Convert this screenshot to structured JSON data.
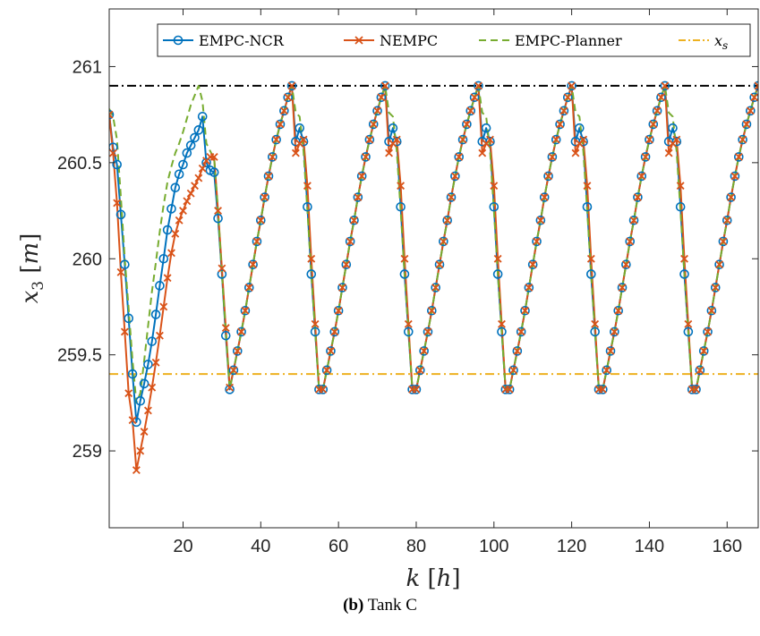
{
  "caption": {
    "tag": "(b)",
    "text": "Tank C"
  },
  "chart_data": {
    "type": "line",
    "title": "",
    "xlabel": "k [h]",
    "ylabel": "x3 [m]",
    "xlim": [
      1,
      168
    ],
    "ylim": [
      258.6,
      261.3
    ],
    "xticks": [
      20,
      40,
      60,
      80,
      100,
      120,
      140,
      160
    ],
    "yticks": [
      259,
      259.5,
      260,
      260.5,
      261
    ],
    "ytick_labels": [
      "259",
      "259.5",
      "260",
      "260.5",
      "261"
    ],
    "legend": {
      "position": "top-right",
      "orientation": "horizontal"
    },
    "reference_lines": [
      {
        "name": "upper bound",
        "y": 260.9,
        "color": "#000000",
        "style": "dash-dot"
      },
      {
        "name": "x_s",
        "y": 259.4,
        "color": "#EDB120",
        "style": "dash-dot"
      }
    ],
    "series": [
      {
        "name": "EMPC-NCR",
        "color": "#0072BD",
        "marker": "circle",
        "x": [
          1,
          2,
          3,
          4,
          5,
          6,
          7,
          8,
          9,
          10,
          11,
          12,
          13,
          14,
          15,
          16,
          17,
          18,
          19,
          20,
          21,
          22,
          23,
          24,
          25,
          26,
          27,
          28,
          29,
          30,
          31,
          32
        ],
        "y": [
          260.75,
          260.58,
          260.49,
          260.23,
          259.97,
          259.69,
          259.4,
          259.15,
          259.26,
          259.35,
          259.45,
          259.57,
          259.71,
          259.86,
          260.0,
          260.15,
          260.26,
          260.37,
          260.44,
          260.49,
          260.55,
          260.59,
          260.63,
          260.67,
          260.74,
          260.5,
          260.46,
          260.45,
          260.21,
          259.92,
          259.6,
          259.32
        ]
      },
      {
        "name": "NEMPC",
        "color": "#D95319",
        "marker": "x",
        "x": [
          1,
          2,
          3,
          4,
          5,
          6,
          7,
          8,
          9,
          10,
          11,
          12,
          13,
          14,
          15,
          16,
          17,
          18,
          19,
          20,
          21,
          22,
          23,
          24,
          25,
          26,
          27,
          28,
          29,
          30,
          31,
          32
        ],
        "y": [
          260.75,
          260.55,
          260.29,
          259.93,
          259.62,
          259.3,
          259.16,
          258.9,
          259.0,
          259.1,
          259.21,
          259.33,
          259.46,
          259.6,
          259.75,
          259.9,
          260.03,
          260.13,
          260.2,
          260.25,
          260.3,
          260.34,
          260.38,
          260.42,
          260.47,
          260.51,
          260.53,
          260.53,
          260.25,
          259.95,
          259.64,
          259.33
        ]
      },
      {
        "name": "EMPC-Planner",
        "color": "#77AC30",
        "marker": "none",
        "x": [
          1,
          2,
          3,
          4,
          5,
          6,
          7,
          8,
          9,
          10,
          11,
          12,
          13,
          14,
          15,
          16,
          17,
          18,
          19,
          20,
          21,
          22,
          23,
          24,
          25,
          26,
          27,
          28,
          29,
          30,
          31,
          32
        ],
        "y": [
          260.78,
          260.74,
          260.62,
          260.32,
          260.0,
          259.74,
          259.47,
          259.25,
          259.3,
          259.47,
          259.65,
          259.83,
          259.98,
          260.14,
          260.28,
          260.4,
          260.48,
          260.55,
          260.6,
          260.66,
          260.73,
          260.8,
          260.85,
          260.9,
          260.82,
          260.6,
          260.56,
          260.52,
          260.25,
          259.92,
          259.62,
          259.32
        ]
      }
    ],
    "periodic_pattern": {
      "applies_to": [
        "EMPC-NCR",
        "NEMPC",
        "EMPC-Planner"
      ],
      "period": 24,
      "start_x": 32,
      "end_x": 168,
      "cycle_offsets_x": [
        0,
        1,
        2,
        3,
        4,
        5,
        6,
        7,
        8,
        9,
        10,
        11,
        12,
        13,
        14,
        15,
        16,
        17,
        18,
        19,
        20,
        21,
        22,
        23
      ],
      "cycle_y": {
        "EMPC-NCR": [
          259.32,
          259.42,
          259.52,
          259.62,
          259.73,
          259.85,
          259.97,
          260.09,
          260.2,
          260.32,
          260.43,
          260.53,
          260.62,
          260.7,
          260.77,
          260.84,
          260.9,
          260.61,
          260.68,
          260.61,
          260.27,
          259.92,
          259.62,
          259.32
        ],
        "NEMPC": [
          259.32,
          259.42,
          259.52,
          259.62,
          259.73,
          259.85,
          259.97,
          260.09,
          260.2,
          260.32,
          260.43,
          260.53,
          260.62,
          260.7,
          260.77,
          260.84,
          260.9,
          260.55,
          260.6,
          260.62,
          260.38,
          260.0,
          259.66,
          259.32
        ],
        "EMPC-Planner": [
          259.32,
          259.42,
          259.52,
          259.62,
          259.73,
          259.85,
          259.97,
          260.09,
          260.2,
          260.32,
          260.43,
          260.53,
          260.62,
          260.7,
          260.77,
          260.84,
          260.9,
          260.76,
          260.74,
          260.56,
          260.25,
          259.92,
          259.62,
          259.32
        ]
      }
    }
  }
}
